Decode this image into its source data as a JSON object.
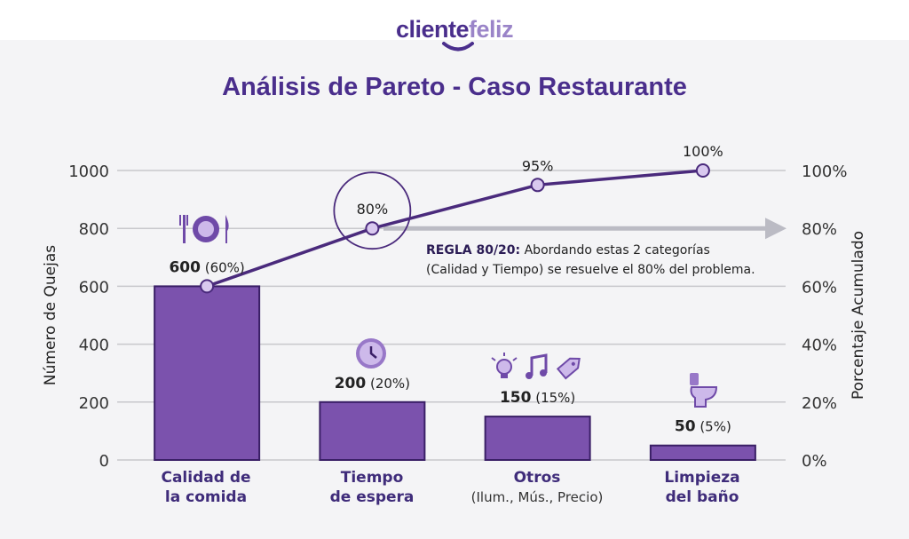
{
  "logo": {
    "part1": "cliente",
    "part2": "feliz"
  },
  "title": "Análisis de Pareto - Caso Restaurante",
  "annotation": {
    "bold": "REGLA 80/20:",
    "line1": "Abordando estas 2 categorías",
    "line2": "(Calidad y Tiempo) se resuelve el 80% del problema."
  },
  "categories": [
    {
      "line1": "Calidad de",
      "line2": "la comida",
      "sub": ""
    },
    {
      "line1": "Tiempo",
      "line2": "de espera",
      "sub": ""
    },
    {
      "line1": "Otros",
      "line2": "",
      "sub": "(Ilum., Mús., Precio)"
    },
    {
      "line1": "Limpieza",
      "line2": "del baño",
      "sub": ""
    }
  ],
  "chart_data": {
    "type": "bar",
    "title": "Análisis de Pareto - Caso Restaurante",
    "categories": [
      "Calidad de la comida",
      "Tiempo de espera",
      "Otros (Ilum., Mús., Precio)",
      "Limpieza del baño"
    ],
    "series": [
      {
        "name": "Número de Quejas",
        "type": "bar",
        "values": [
          600,
          200,
          150,
          50
        ]
      },
      {
        "name": "Porcentaje Acumulado",
        "type": "line",
        "values": [
          60,
          80,
          95,
          100
        ]
      }
    ],
    "bar_labels": [
      {
        "value": "600",
        "pct": "(60%)"
      },
      {
        "value": "200",
        "pct": "(20%)"
      },
      {
        "value": "150",
        "pct": "(15%)"
      },
      {
        "value": "50",
        "pct": "(5%)"
      }
    ],
    "line_labels": [
      "80%",
      "95%",
      "100%"
    ],
    "ylabel": "Número de Quejas",
    "y2label": "Porcentaje Acumulado",
    "ylim": [
      0,
      1000
    ],
    "y2lim": [
      0,
      100
    ],
    "yticks": [
      "0",
      "200",
      "400",
      "600",
      "800",
      "1000"
    ],
    "y2ticks": [
      "0%",
      "20%",
      "40%",
      "60%",
      "80%",
      "100%"
    ],
    "colors": {
      "bar": "#7b52ad",
      "barBorder": "#3a1f66",
      "line": "#4a2a7c",
      "marker": "#d9c9ef",
      "grid": "#c8c8cc",
      "arrow": "#bbbbc4",
      "text": "#333333"
    }
  }
}
